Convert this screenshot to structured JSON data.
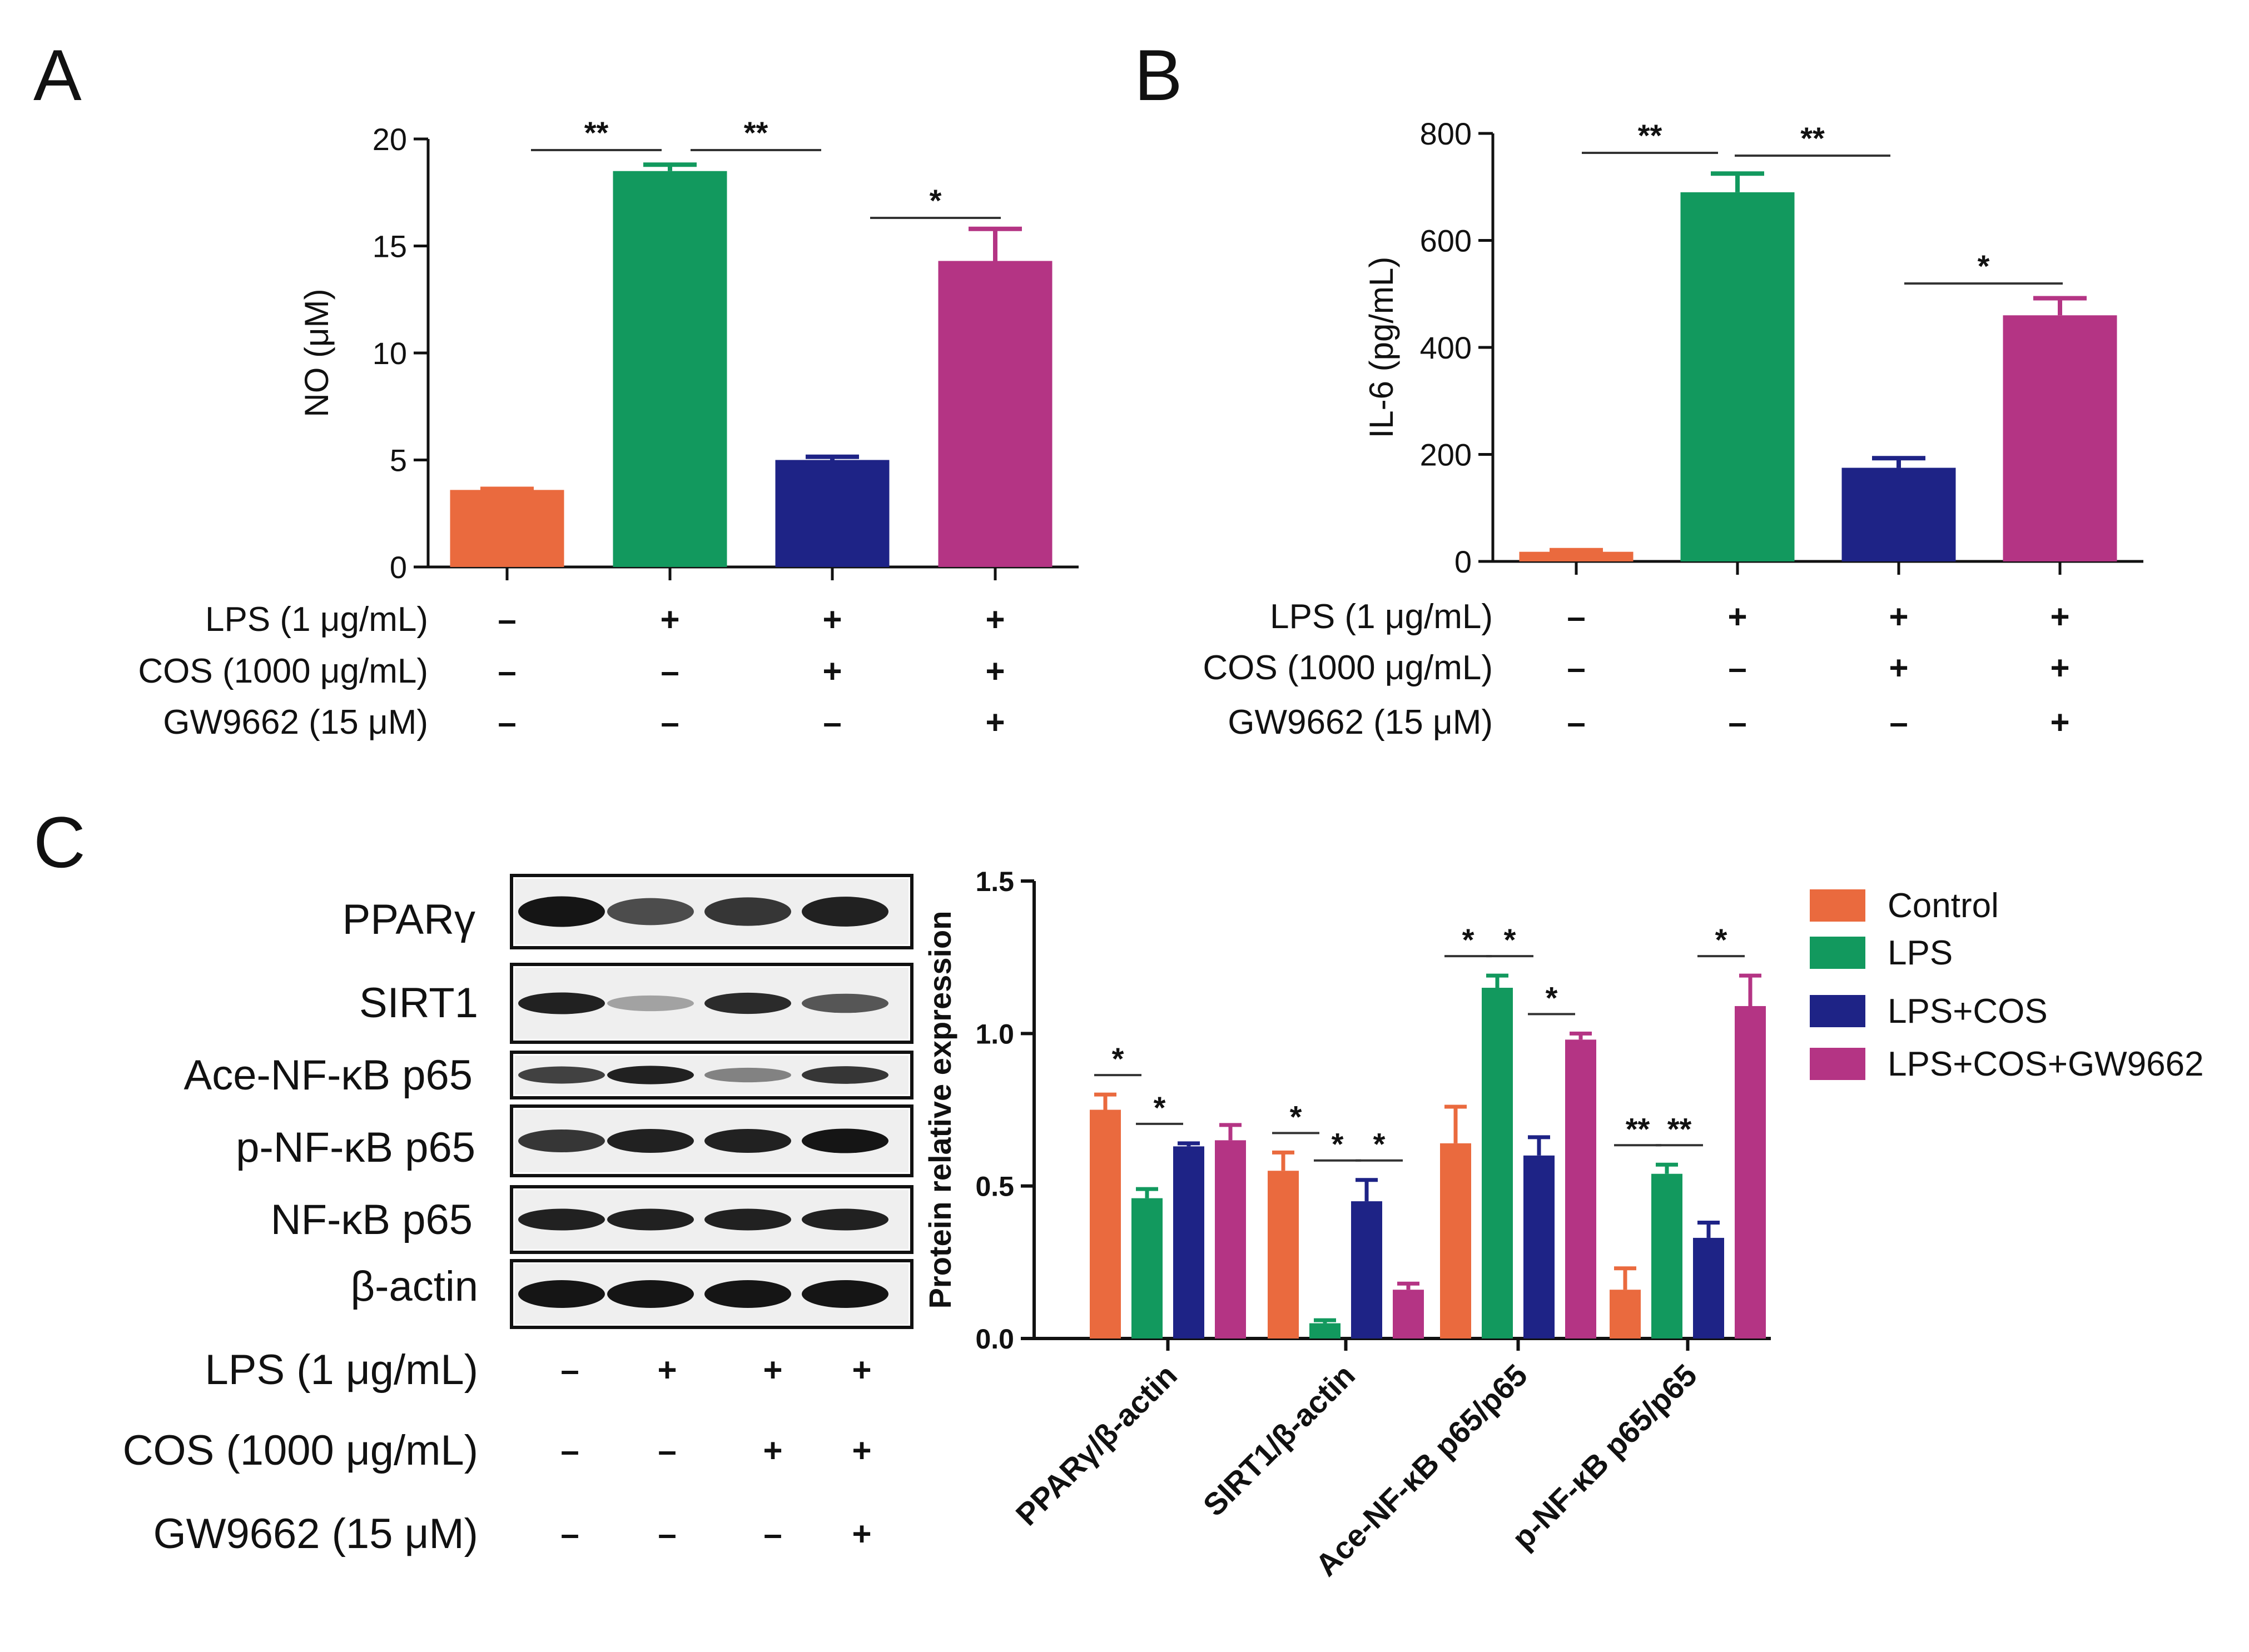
{
  "panels": {
    "a": "A",
    "b": "B",
    "c": "C"
  },
  "colors": {
    "control": "#EA6A3E",
    "lps": "#12995E",
    "lps_cos": "#1E2386",
    "lps_cos_gw": "#B43484",
    "axis": "#111111"
  },
  "conditions": {
    "row_labels": [
      "LPS (1 μg/mL)",
      "COS (1000 μg/mL)",
      "GW9662 (15 μM)"
    ],
    "signs": [
      [
        "–",
        "+",
        "+",
        "+"
      ],
      [
        "–",
        "–",
        "+",
        "+"
      ],
      [
        "–",
        "–",
        "–",
        "+"
      ]
    ]
  },
  "blot": {
    "proteins": [
      "PPARγ",
      "SIRT1",
      "Ace-NF-κB p65",
      "p-NF-κB p65",
      "NF-κB p65",
      "β-actin"
    ],
    "row_labels": [
      "LPS (1 μg/mL)",
      "COS (1000 μg/mL)",
      "GW9662 (15 μM)"
    ],
    "signs": [
      [
        "–",
        "+",
        "+",
        "+"
      ],
      [
        "–",
        "–",
        "+",
        "+"
      ],
      [
        "–",
        "–",
        "–",
        "+"
      ]
    ]
  },
  "legend": [
    "Control",
    "LPS",
    "LPS+COS",
    "LPS+COS+GW9662"
  ],
  "chart_data": [
    {
      "id": "A",
      "type": "bar",
      "ylabel": "NO (μM)",
      "ylim": [
        0,
        20
      ],
      "yticks": [
        0,
        5,
        10,
        15,
        20
      ],
      "categories": [
        "Control",
        "LPS",
        "LPS+COS",
        "LPS+COS+GW9662"
      ],
      "values": [
        3.6,
        18.5,
        5.0,
        14.3
      ],
      "errors": [
        0.05,
        0.3,
        0.15,
        1.5
      ],
      "significance": [
        {
          "from": 0,
          "to": 1,
          "label": "**"
        },
        {
          "from": 1,
          "to": 2,
          "label": "**"
        },
        {
          "from": 2,
          "to": 3,
          "label": "*"
        }
      ]
    },
    {
      "id": "B",
      "type": "bar",
      "ylabel": "IL-6 (pg/mL)",
      "ylim": [
        0,
        800
      ],
      "yticks": [
        0,
        200,
        400,
        600,
        800
      ],
      "categories": [
        "Control",
        "LPS",
        "LPS+COS",
        "LPS+COS+GW9662"
      ],
      "values": [
        18,
        690,
        175,
        460
      ],
      "errors": [
        3,
        35,
        18,
        32
      ],
      "significance": [
        {
          "from": 0,
          "to": 1,
          "label": "**"
        },
        {
          "from": 1,
          "to": 2,
          "label": "**"
        },
        {
          "from": 2,
          "to": 3,
          "label": "*"
        }
      ]
    },
    {
      "id": "C",
      "type": "bar",
      "ylabel": "Protein relative expression",
      "ylim": [
        0,
        1.5
      ],
      "yticks": [
        0.0,
        0.5,
        1.0,
        1.5
      ],
      "categories": [
        "PPARγ/β-actin",
        "SIRT1/β-actin",
        "Ace-NF-κB p65/p65",
        "p-NF-κB p65/p65"
      ],
      "series": [
        {
          "name": "Control",
          "values": [
            0.75,
            0.55,
            0.64,
            0.16
          ],
          "errors": [
            0.05,
            0.06,
            0.12,
            0.07
          ]
        },
        {
          "name": "LPS",
          "values": [
            0.46,
            0.05,
            1.15,
            0.54
          ],
          "errors": [
            0.03,
            0.01,
            0.04,
            0.03
          ]
        },
        {
          "name": "LPS+COS",
          "values": [
            0.63,
            0.45,
            0.6,
            0.33
          ],
          "errors": [
            0.01,
            0.07,
            0.06,
            0.05
          ]
        },
        {
          "name": "LPS+COS+GW9662",
          "values": [
            0.65,
            0.16,
            0.98,
            1.09
          ],
          "errors": [
            0.05,
            0.02,
            0.02,
            0.1
          ]
        }
      ],
      "significance": [
        {
          "category": 0,
          "from": 0,
          "to": 1,
          "label": "*"
        },
        {
          "category": 0,
          "from": 1,
          "to": 2,
          "label": "*"
        },
        {
          "category": 1,
          "from": 0,
          "to": 1,
          "label": "*"
        },
        {
          "category": 1,
          "from": 1,
          "to": 2,
          "label": "*"
        },
        {
          "category": 1,
          "from": 2,
          "to": 3,
          "label": "*"
        },
        {
          "category": 2,
          "from": 0,
          "to": 1,
          "label": "*"
        },
        {
          "category": 2,
          "from": 1,
          "to": 2,
          "label": "*"
        },
        {
          "category": 2,
          "from": 2,
          "to": 3,
          "label": "*"
        },
        {
          "category": 3,
          "from": 3,
          "to": 2,
          "label": "*"
        },
        {
          "category": 3,
          "from": 0,
          "to": 1,
          "label": "**"
        },
        {
          "category": 3,
          "from": 1,
          "to": 2,
          "label": "**"
        }
      ]
    }
  ]
}
